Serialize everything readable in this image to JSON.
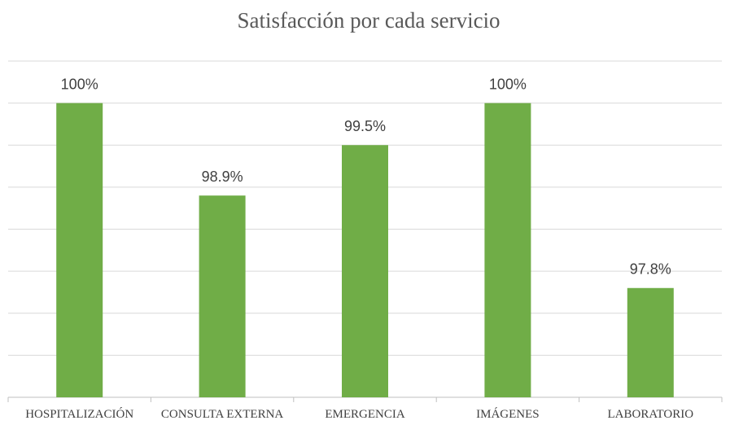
{
  "chart_data": {
    "type": "bar",
    "title": "Satisfacción por cada servicio",
    "categories": [
      "HOSPITALIZACIÓN",
      "CONSULTA EXTERNA",
      "EMERGENCIA",
      "IMÁGENES",
      "LABORATORIO"
    ],
    "values": [
      100,
      98.9,
      99.5,
      100,
      97.8
    ],
    "value_labels": [
      "100%",
      "98.9%",
      "99.5%",
      "100%",
      "97.8%"
    ],
    "color": "#70ad47",
    "ylim": [
      96.5,
      100.5
    ],
    "yticks": [
      96.5,
      97,
      97.5,
      98,
      98.5,
      99,
      99.5,
      100,
      100.5
    ],
    "grid": true
  }
}
